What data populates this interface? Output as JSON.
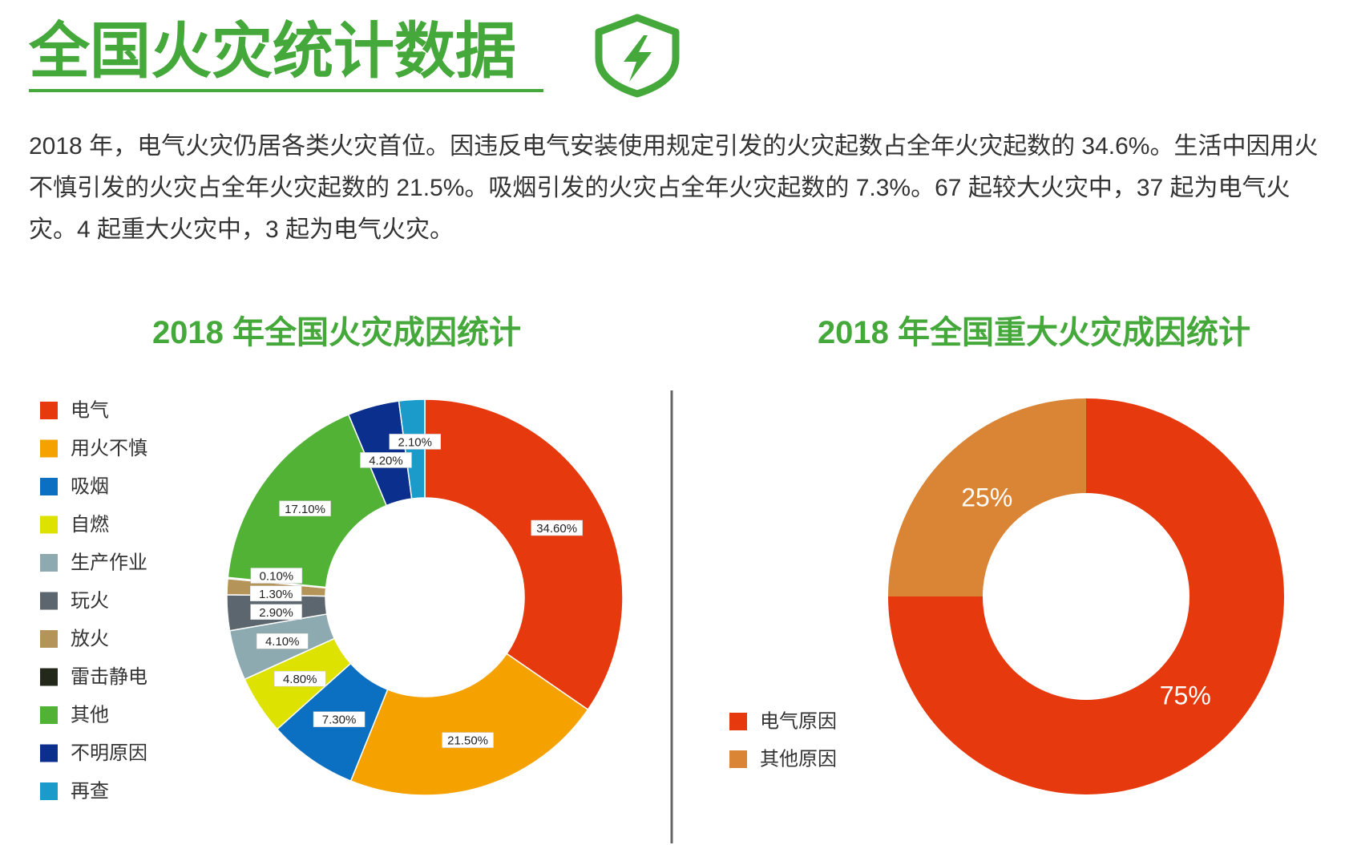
{
  "header": {
    "title": "全国火灾统计数据",
    "paragraph": "2018 年，电气火灾仍居各类火灾首位。因违反电气安装使用规定引发的火灾起数占全年火灾起数的 34.6%。生活中因用火不慎引发的火灾占全年火灾起数的 21.5%。吸烟引发的火灾占全年火灾起数的 7.3%。67 起较大火灾中，37 起为电气火灾。4 起重大火灾中，3 起为电气火灾。"
  },
  "chart_data": [
    {
      "type": "donut",
      "title": "2018 年全国火灾成因统计",
      "categories": [
        "电气",
        "用火不慎",
        "吸烟",
        "自燃",
        "生产作业",
        "玩火",
        "放火",
        "雷击静电",
        "其他",
        "不明原因",
        "再查"
      ],
      "values": [
        34.6,
        21.5,
        7.3,
        4.8,
        4.1,
        2.9,
        1.3,
        0.1,
        17.1,
        4.2,
        2.1
      ],
      "value_labels": [
        "34.60%",
        "21.50%",
        "7.30%",
        "4.80%",
        "4.10%",
        "2.90%",
        "1.30%",
        "0.10%",
        "17.10%",
        "4.20%",
        "2.10%"
      ],
      "colors": [
        "#e63a0e",
        "#f5a200",
        "#0b6fc2",
        "#dde200",
        "#8eaab1",
        "#5b666f",
        "#b5945a",
        "#22281a",
        "#52b236",
        "#0a2f8c",
        "#1b9bca"
      ],
      "legend": "left"
    },
    {
      "type": "donut",
      "title": "2018 年全国重大火灾成因统计",
      "categories": [
        "电气原因",
        "其他原因"
      ],
      "values": [
        75,
        25
      ],
      "value_labels": [
        "75%",
        "25%"
      ],
      "colors": [
        "#e63a0e",
        "#da8535"
      ],
      "legend": "bottom-left"
    }
  ]
}
